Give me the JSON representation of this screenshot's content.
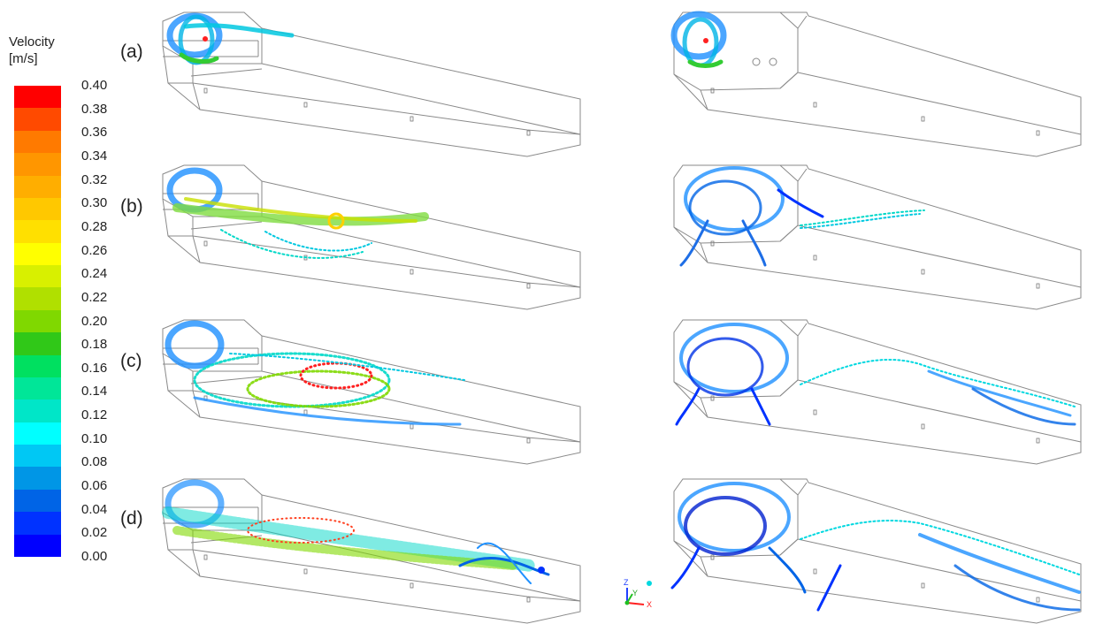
{
  "colorbar": {
    "title_line1": "Velocity",
    "title_line2": "[m/s]",
    "ticks": [
      "0.40",
      "0.38",
      "0.36",
      "0.34",
      "0.32",
      "0.30",
      "0.28",
      "0.26",
      "0.24",
      "0.22",
      "0.20",
      "0.18",
      "0.16",
      "0.14",
      "0.12",
      "0.10",
      "0.08",
      "0.06",
      "0.04",
      "0.02",
      "0.00"
    ],
    "colors": [
      "#ff0000",
      "#ff4a00",
      "#ff7a00",
      "#ff9600",
      "#ffae00",
      "#ffc800",
      "#ffe000",
      "#ffff00",
      "#d8f000",
      "#b0e000",
      "#80d800",
      "#30c818",
      "#00e060",
      "#00e698",
      "#00e6c8",
      "#00ffff",
      "#00c8f4",
      "#0096e6",
      "#0064e6",
      "#0032ff",
      "#0000ff"
    ]
  },
  "panels": {
    "a": "(a)",
    "b": "(b)",
    "c": "(c)",
    "d": "(d)"
  },
  "axes_triad": {
    "z": "Z",
    "y": "Y",
    "x": "X"
  }
}
